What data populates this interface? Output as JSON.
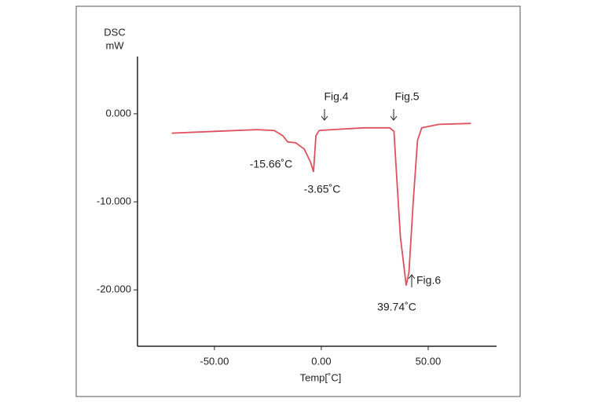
{
  "chart_data": {
    "type": "line",
    "y_label_lines": [
      "DSC",
      "mW"
    ],
    "x_label": "Temp[˚C]",
    "x": [
      -70,
      -50,
      -30,
      -22,
      -18,
      -15.66,
      -12,
      -8,
      -5,
      -3.65,
      -2.5,
      -1,
      5,
      20,
      32,
      34,
      35,
      37,
      39.74,
      41,
      43,
      45,
      47,
      55,
      70
    ],
    "series": [
      {
        "name": "DSC",
        "color": "#e0505e",
        "values": [
          -2.2,
          -2.0,
          -1.8,
          -1.9,
          -2.5,
          -3.2,
          -3.3,
          -4.0,
          -5.5,
          -6.6,
          -2.5,
          -1.9,
          -1.8,
          -1.6,
          -1.6,
          -2.0,
          -6,
          -14,
          -19.5,
          -18,
          -10,
          -3,
          -1.6,
          -1.2,
          -1.1
        ]
      }
    ],
    "xlim": [
      -86,
      82
    ],
    "ylim": [
      -26.4,
      6.5
    ],
    "xticks": [
      {
        "value": -50,
        "label": "-50.00"
      },
      {
        "value": 0,
        "label": "0.00"
      },
      {
        "value": 50,
        "label": "50.00"
      }
    ],
    "yticks": [
      {
        "value": 0,
        "label": "0.000"
      },
      {
        "value": -10,
        "label": "-10.000"
      },
      {
        "value": -20,
        "label": "-20.000"
      }
    ],
    "annotations": [
      "-15.66˚C",
      "-3.65˚C",
      "Fig.4",
      "Fig.5",
      "Fig.6",
      "39.74˚C"
    ]
  }
}
